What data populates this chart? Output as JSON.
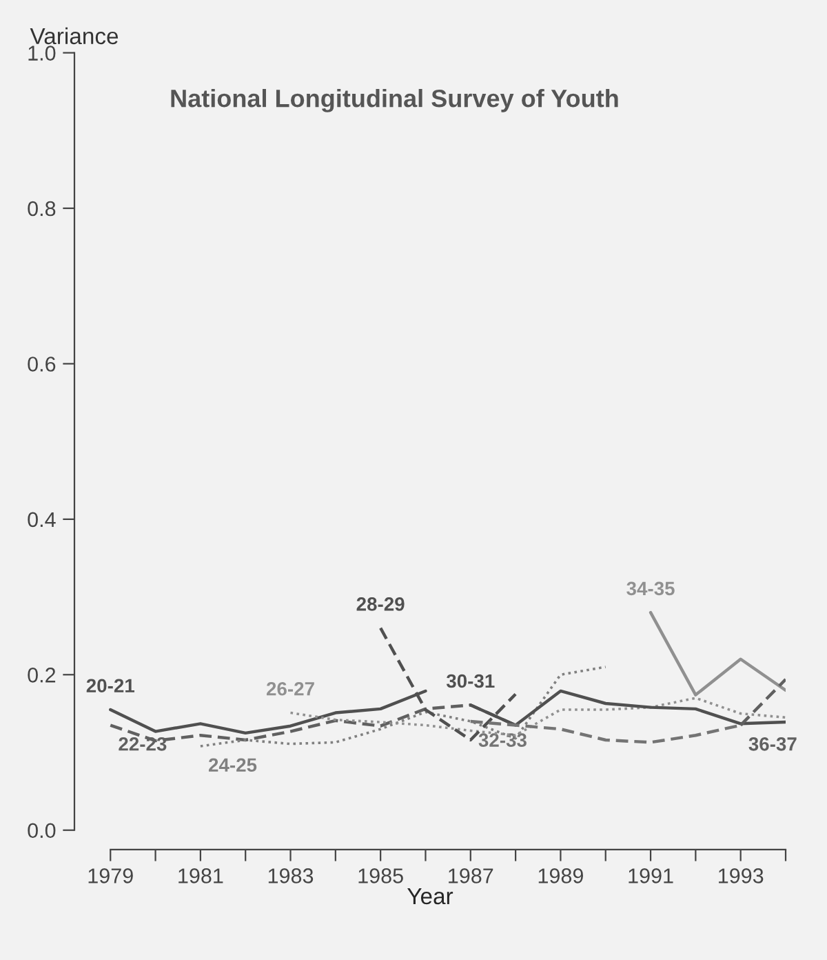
{
  "chart_data": {
    "type": "line",
    "title": "National Longitudinal Survey of Youth",
    "xlabel": "Year",
    "ylabel": "Variance",
    "xlim": [
      1978.2,
      1994
    ],
    "xticks": [
      1979,
      {
        "value": 1980,
        "label": null
      },
      1981,
      {
        "value": 1982,
        "label": null
      },
      1983,
      {
        "value": 1984,
        "label": null
      },
      1985,
      {
        "value": 1986,
        "label": null
      },
      1987,
      {
        "value": 1988,
        "label": null
      },
      1989,
      {
        "value": 1990,
        "label": null
      },
      1991,
      {
        "value": 1992,
        "label": null
      },
      1993,
      {
        "value": 1994,
        "label": null
      }
    ],
    "ylim": [
      -0.025,
      1
    ],
    "yticks": [
      {
        "value": 0,
        "label": "0.0"
      },
      {
        "value": 0.2,
        "label": "0.2"
      },
      {
        "value": 0.4,
        "label": "0.4"
      },
      {
        "value": 0.6,
        "label": "0.6"
      },
      {
        "value": 0.8,
        "label": "0.8"
      },
      {
        "value": 1,
        "label": "1.0"
      }
    ],
    "grid": false,
    "legend": false,
    "marker": "none",
    "series": [
      {
        "name": "20-21",
        "color": "#505050",
        "line_style": "solid",
        "x": [
          1979,
          1980,
          1981,
          1982,
          1983,
          1984,
          1985,
          1986
        ],
        "values": [
          0.155,
          0.127,
          0.137,
          0.125,
          0.134,
          0.151,
          0.156,
          0.179
        ]
      },
      {
        "name": "22-23",
        "color": "#606060",
        "line_style": "dashed",
        "x": [
          1979,
          1980,
          1981,
          1982,
          1983,
          1984,
          1985,
          1986,
          1987,
          1988
        ],
        "values": [
          0.135,
          0.115,
          0.122,
          0.116,
          0.127,
          0.141,
          0.134,
          0.156,
          0.161,
          0.135
        ]
      },
      {
        "name": "24-25",
        "color": "#808080",
        "line_style": "dotted",
        "x": [
          1981,
          1982,
          1983,
          1984,
          1985,
          1986,
          1987,
          1988,
          1989,
          1990
        ],
        "values": [
          0.108,
          0.116,
          0.111,
          0.113,
          0.13,
          0.152,
          0.14,
          0.118,
          0.2,
          0.21
        ]
      },
      {
        "name": "26-27",
        "color": "#909090",
        "line_style": "dotted",
        "x": [
          1983,
          1984,
          1985,
          1986,
          1987,
          1988,
          1989,
          1990,
          1991,
          1992,
          1993,
          1994
        ],
        "values": [
          0.151,
          0.142,
          0.139,
          0.135,
          0.128,
          0.122,
          0.155,
          0.155,
          0.158,
          0.17,
          0.15,
          0.145
        ]
      },
      {
        "name": "28-29",
        "color": "#505050",
        "line_style": "dashed",
        "x": [
          1985,
          1986,
          1987,
          1988
        ],
        "values": [
          0.26,
          0.155,
          0.116,
          0.175
        ]
      },
      {
        "name": "30-31",
        "color": "#505050",
        "line_style": "solid",
        "x": [
          1987,
          1988,
          1989,
          1990,
          1991,
          1992,
          1993,
          1994
        ],
        "values": [
          0.161,
          0.135,
          0.179,
          0.163,
          0.158,
          0.156,
          0.137,
          0.139
        ]
      },
      {
        "name": "32-33",
        "color": "#747474",
        "line_style": "dashed",
        "x": [
          1987,
          1988,
          1989,
          1990,
          1991,
          1992,
          1993
        ],
        "values": [
          0.14,
          0.135,
          0.13,
          0.116,
          0.113,
          0.122,
          0.135
        ]
      },
      {
        "name": "34-35",
        "color": "#909090",
        "line_style": "solid",
        "x": [
          1991,
          1992,
          1993,
          1994
        ],
        "values": [
          0.28,
          0.174,
          0.22,
          0.18
        ]
      },
      {
        "name": "36-37",
        "color": "#606060",
        "line_style": "dashed",
        "x": [
          1993,
          1994
        ],
        "values": [
          0.135,
          0.194
        ]
      }
    ]
  }
}
